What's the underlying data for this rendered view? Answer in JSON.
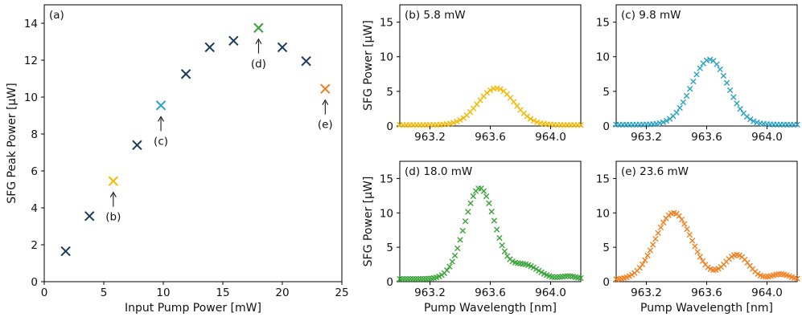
{
  "colors": {
    "navy": "#1b3a5c",
    "yellow": "#f5b800",
    "teal": "#2aa3c4",
    "green": "#3aa33a",
    "orange": "#f08020"
  },
  "chart_data": [
    {
      "id": "a",
      "type": "scatter",
      "panel_label": "(a)",
      "xlabel": "Input Pump Power [mW]",
      "ylabel": "SFG Peak Power [µW]",
      "xlim": [
        0,
        25
      ],
      "ylim": [
        0,
        15
      ],
      "xticks": [
        "0",
        "5",
        "10",
        "15",
        "20",
        "25"
      ],
      "yticks": [
        "0",
        "2",
        "4",
        "6",
        "8",
        "10",
        "12",
        "14"
      ],
      "points": [
        {
          "x": 1.8,
          "y": 1.65,
          "color": "navy"
        },
        {
          "x": 3.8,
          "y": 3.55,
          "color": "navy"
        },
        {
          "x": 5.8,
          "y": 5.45,
          "color": "yellow"
        },
        {
          "x": 7.8,
          "y": 7.4,
          "color": "navy"
        },
        {
          "x": 9.8,
          "y": 9.55,
          "color": "teal"
        },
        {
          "x": 11.9,
          "y": 11.25,
          "color": "navy"
        },
        {
          "x": 13.9,
          "y": 12.7,
          "color": "navy"
        },
        {
          "x": 15.9,
          "y": 13.05,
          "color": "navy"
        },
        {
          "x": 18.0,
          "y": 13.75,
          "color": "green"
        },
        {
          "x": 20.0,
          "y": 12.7,
          "color": "navy"
        },
        {
          "x": 22.0,
          "y": 11.95,
          "color": "navy"
        },
        {
          "x": 23.6,
          "y": 10.45,
          "color": "orange"
        }
      ],
      "annotations": [
        {
          "text": "(b)",
          "x": 5.8,
          "y": 5.45,
          "below": true
        },
        {
          "text": "(c)",
          "x": 9.8,
          "y": 9.55,
          "below": true
        },
        {
          "text": "(d)",
          "x": 18.0,
          "y": 13.75,
          "below": true
        },
        {
          "text": "(e)",
          "x": 23.6,
          "y": 10.45,
          "below": true
        }
      ]
    },
    {
      "id": "b",
      "type": "scatter",
      "panel_label": "(b) 5.8 mW",
      "color": "yellow",
      "ylabel": "SFG Power [µW]",
      "xlabel": "",
      "xlim": [
        963.0,
        964.2
      ],
      "ylim": [
        0,
        17.5
      ],
      "xticks": [
        "963.2",
        "963.6",
        "964.0"
      ],
      "yticks": [
        "0",
        "5",
        "10",
        "15"
      ],
      "series": {
        "model": "peaks",
        "baseline": 0.15,
        "n": 55,
        "peaks": [
          [
            963.64,
            5.3,
            0.12
          ]
        ]
      }
    },
    {
      "id": "c",
      "type": "scatter",
      "panel_label": "(c) 9.8 mW",
      "color": "teal",
      "ylabel": "",
      "xlabel": "",
      "xlim": [
        963.0,
        964.2
      ],
      "ylim": [
        0,
        17.5
      ],
      "xticks": [
        "963.2",
        "963.6",
        "964.0"
      ],
      "yticks": [
        "0",
        "5",
        "10",
        "15"
      ],
      "series": {
        "model": "peaks",
        "baseline": 0.2,
        "n": 55,
        "peaks": [
          [
            963.62,
            9.4,
            0.12
          ]
        ]
      }
    },
    {
      "id": "d",
      "type": "scatter",
      "panel_label": "(d) 18.0 mW",
      "color": "green",
      "ylabel": "SFG Power [µW]",
      "xlabel": "Pump Wavelength [nm]",
      "xlim": [
        963.0,
        964.2
      ],
      "ylim": [
        0,
        17.5
      ],
      "xticks": [
        "963.2",
        "963.6",
        "964.0"
      ],
      "yticks": [
        "0",
        "5",
        "10",
        "15"
      ],
      "series": {
        "model": "peaks",
        "baseline": 0.4,
        "n": 70,
        "peaks": [
          [
            963.53,
            13.2,
            0.1
          ],
          [
            963.83,
            2.0,
            0.09
          ],
          [
            964.12,
            0.4,
            0.05
          ]
        ]
      }
    },
    {
      "id": "e",
      "type": "scatter",
      "panel_label": "(e) 23.6 mW",
      "color": "orange",
      "ylabel": "",
      "xlabel": "Pump Wavelength [nm]",
      "xlim": [
        963.0,
        964.2
      ],
      "ylim": [
        0,
        17.5
      ],
      "xticks": [
        "963.2",
        "963.6",
        "964.0"
      ],
      "yticks": [
        "0",
        "5",
        "10",
        "15"
      ],
      "series": {
        "model": "peaks",
        "baseline": 0.3,
        "n": 70,
        "peaks": [
          [
            963.38,
            9.7,
            0.12
          ],
          [
            963.8,
            3.6,
            0.08
          ],
          [
            964.09,
            0.8,
            0.06
          ]
        ]
      }
    }
  ]
}
